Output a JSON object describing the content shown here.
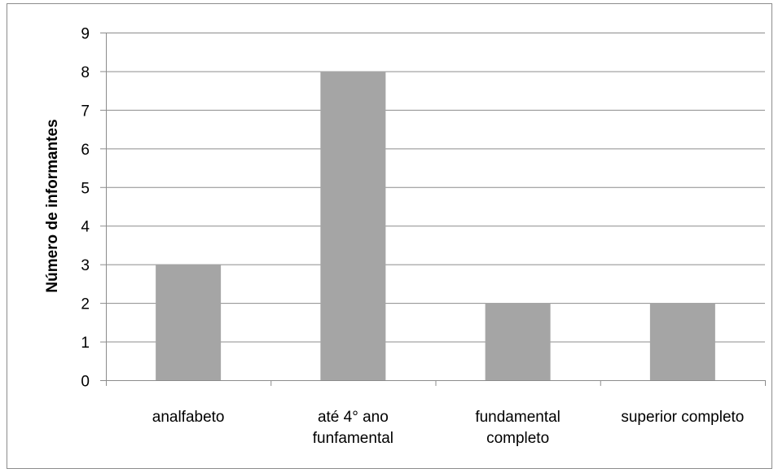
{
  "chart_data": {
    "type": "bar",
    "categories": [
      [
        "analfabeto"
      ],
      [
        "até 4° ano",
        "funfamental"
      ],
      [
        "fundamental",
        "completo"
      ],
      [
        "superior completo"
      ]
    ],
    "values": [
      3,
      8,
      2,
      2
    ],
    "title": "",
    "xlabel": "",
    "ylabel": "Número de informantes",
    "ylim": [
      0,
      9
    ],
    "yticks": [
      0,
      1,
      2,
      3,
      4,
      5,
      6,
      7,
      8,
      9
    ],
    "grid": true,
    "legend": "none",
    "colors": {
      "bar": "#a5a5a5",
      "grid": "#8c8c8c",
      "axis": "#8c8c8c",
      "border": "#8c8c8c"
    }
  }
}
